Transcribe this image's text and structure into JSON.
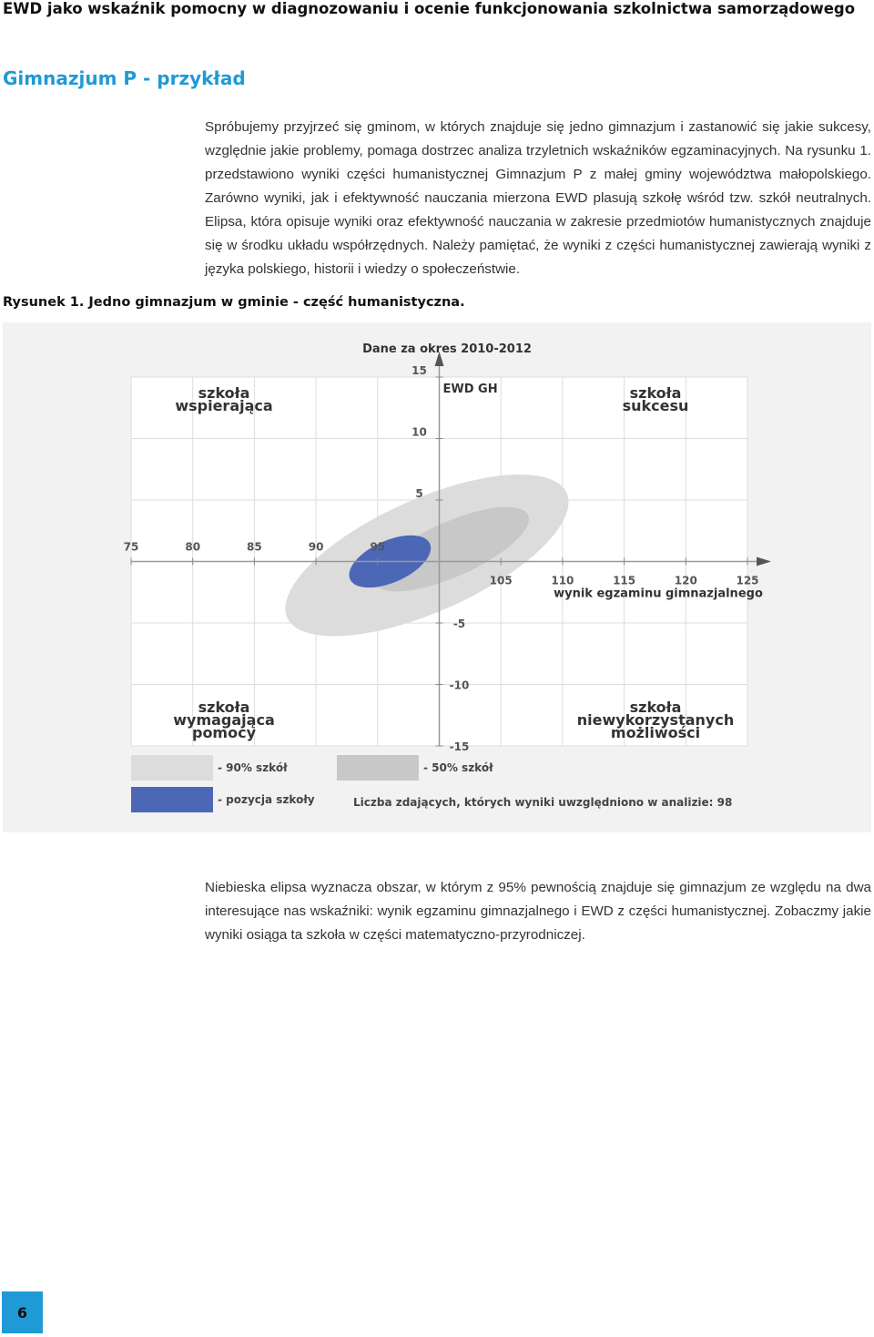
{
  "header": {
    "title": "EWD jako wskaźnik pomocny w diagnozowaniu i ocenie funkcjonowania szkolnictwa samorządowego"
  },
  "section": {
    "title": "Gimnazjum P - przykład"
  },
  "paragraphs": {
    "intro": "Spróbujemy przyjrzeć się gminom, w których znajduje się jedno gimnazjum i zastanowić się jakie sukcesy, względnie jakie problemy, pomaga dostrzec analiza trzyletnich wskaźników egzaminacyjnych. Na rysunku 1. przedstawiono wyniki części humanistycznej Gimnazjum P z małej gminy województwa małopolskiego. Zarówno wyniki, jak i efektywność nauczania mierzona EWD plasują szkołę wśród tzw. szkół neutralnych. Elipsa, która opisuje wyniki oraz efektywność nauczania w zakresie przedmiotów humanistycznych znajduje się w środku układu współrzędnych. Należy pamiętać, że wyniki z części humanistycznej zawierają wyniki z języka polskiego, historii i wiedzy o społeczeństwie.",
    "outro": "Niebieska elipsa wyznacza obszar, w którym z 95% pewnością znajduje się gimnazjum ze względu na dwa interesujące nas wskaźniki: wynik egzaminu gimnazjalnego i EWD z części humanistycznej. Zobaczmy jakie wyniki osiąga ta szkoła w części matematyczno-przyrodniczej."
  },
  "figure": {
    "caption": "Rysunek 1. Jedno gimnazjum w gminie - część humanistyczna."
  },
  "chart_data": {
    "type": "scatter",
    "title": "Dane za okres 2010-2012",
    "xlabel": "wynik egzaminu gimnazjalnego",
    "ylabel": "EWD GH",
    "xlim": [
      75,
      125
    ],
    "ylim": [
      -15,
      15
    ],
    "x_ticks": [
      75,
      80,
      85,
      90,
      95,
      105,
      110,
      115,
      120,
      125
    ],
    "y_ticks": [
      15,
      10,
      5,
      -5,
      -10,
      -15
    ],
    "grid": true,
    "quadrants": {
      "top_left": [
        "szkoła",
        "wspierająca"
      ],
      "top_right": [
        "szkoła",
        "sukcesu"
      ],
      "bottom_left": [
        "szkoła",
        "wymagająca",
        "pomocy"
      ],
      "bottom_right": [
        "szkoła",
        "niewykorzystanych",
        "możliwości"
      ]
    },
    "ellipses": [
      {
        "name": "- 90% szkół",
        "center_x": 99,
        "center_y": 0.5,
        "color": "#dcdcdc"
      },
      {
        "name": "- 50% szkół",
        "center_x": 101,
        "center_y": 1,
        "color": "#c8c8c8"
      },
      {
        "name": "- pozycja szkoły",
        "center_x": 96,
        "center_y": 0,
        "color": "#4b67b6"
      }
    ],
    "legend": [
      "- 90% szkół",
      "- 50% szkół",
      "- pozycja szkoły"
    ],
    "legend_position": "bottom-left",
    "note": "Liczba zdających, których wyniki uwzględniono w analizie: 98"
  },
  "page": {
    "number": "6"
  },
  "colors": {
    "accent": "#1f9ad6",
    "school_ellipse": "#4b67b6"
  }
}
